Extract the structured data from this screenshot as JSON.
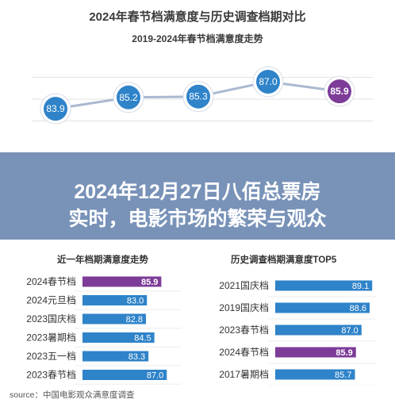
{
  "header": {
    "title": "2024年春节档满意度与历史调查档期对比",
    "subtitle": "2019-2024年春节档满意度走势"
  },
  "banner": {
    "line1": "2024年12月27日八佰总票房",
    "line2": "实时，电影市场的繁荣与观众"
  },
  "source": "source：中国电影观众满意度调查",
  "colors": {
    "blue": "#2f83c9",
    "purple": "#7d3c98",
    "line": "#aab8d0",
    "grid": "#e3e3e3",
    "text": "#333333"
  },
  "chart_data": [
    {
      "type": "line",
      "title": "2019-2024年春节档满意度走势",
      "values": [
        83.9,
        85.2,
        85.3,
        87.0,
        85.9
      ],
      "labels": [
        "83.9",
        "85.2",
        "85.3",
        "87.0",
        "85.9"
      ],
      "highlight_index": 4,
      "ylim": [
        80,
        90
      ]
    },
    {
      "type": "bar",
      "title": "近一年档期满意度走势",
      "categories": [
        "2024春节档",
        "2024元旦档",
        "2023国庆档",
        "2023暑期档",
        "2023五一档",
        "2023春节档"
      ],
      "values": [
        85.9,
        83.0,
        82.8,
        84.5,
        83.3,
        87.0
      ],
      "labels": [
        "85.9",
        "83.0",
        "82.8",
        "84.5",
        "83.3",
        "87.0"
      ],
      "highlight_index": 0,
      "xlim": [
        70,
        90
      ]
    },
    {
      "type": "bar",
      "title": "历史调查档期满意度TOP5",
      "categories": [
        "2021国庆档",
        "2019国庆档",
        "2023春节档",
        "2024春节档",
        "2017暑期档"
      ],
      "values": [
        89.1,
        88.6,
        87.0,
        85.9,
        85.7
      ],
      "labels": [
        "89.1",
        "88.6",
        "87.0",
        "85.9",
        "85.7"
      ],
      "highlight_index": 3,
      "xlim": [
        70,
        90
      ]
    }
  ]
}
